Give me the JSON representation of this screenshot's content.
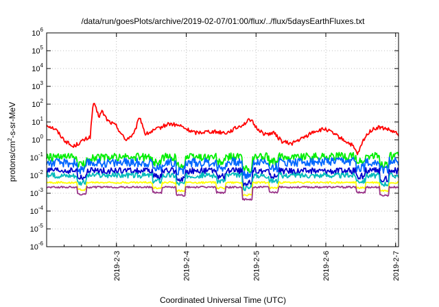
{
  "chart_data": {
    "type": "line",
    "title": "/data/run/goesPlots/archive/2019-02-07/01:00/flux/../flux/5daysEarthFluxes.txt",
    "xlabel": "Coordinated Universal Time (UTC)",
    "ylabel": "protons/cm2-s-sr-MeV",
    "ylabel_parts": {
      "before": "protons/cm",
      "sup": "2",
      "after": "-s-sr-MeV"
    },
    "y_scale": "log",
    "ylim": [
      1e-06,
      1000000.0
    ],
    "y_ticks": [
      {
        "value": 1e-06,
        "base": "10",
        "exp": "-6"
      },
      {
        "value": 1e-05,
        "base": "10",
        "exp": "-5"
      },
      {
        "value": 0.0001,
        "base": "10",
        "exp": "-4"
      },
      {
        "value": 0.001,
        "base": "10",
        "exp": "-3"
      },
      {
        "value": 0.01,
        "base": "10",
        "exp": "-2"
      },
      {
        "value": 0.1,
        "base": "10",
        "exp": "-1"
      },
      {
        "value": 1.0,
        "base": "10",
        "exp": "0"
      },
      {
        "value": 10.0,
        "base": "10",
        "exp": "1"
      },
      {
        "value": 100.0,
        "base": "10",
        "exp": "2"
      },
      {
        "value": 1000.0,
        "base": "10",
        "exp": "3"
      },
      {
        "value": 10000.0,
        "base": "10",
        "exp": "4"
      },
      {
        "value": 100000.0,
        "base": "10",
        "exp": "5"
      },
      {
        "value": 1000000.0,
        "base": "10",
        "exp": "6"
      }
    ],
    "xlim": [
      "2019-02-02T00:00",
      "2019-02-07T01:00"
    ],
    "x_ticks": [
      "2019-2-3",
      "2019-2-4",
      "2019-2-5",
      "2019-2-6",
      "2019-2-7"
    ],
    "grid": true,
    "legend": "none",
    "series": [
      {
        "color": "#ff0000",
        "level": 3.5,
        "amp": 0.22,
        "points": [
          [
            "2019-02-02T00:00",
            7.0
          ],
          [
            "2019-02-02T03:00",
            4.0
          ],
          [
            "2019-02-02T06:00",
            1.0
          ],
          [
            "2019-02-02T09:00",
            0.4
          ],
          [
            "2019-02-02T12:00",
            0.8
          ],
          [
            "2019-02-02T15:00",
            1.5
          ],
          [
            "2019-02-02T16:00",
            130
          ],
          [
            "2019-02-02T18:00",
            20
          ],
          [
            "2019-02-02T19:00",
            40
          ],
          [
            "2019-02-02T21:00",
            12
          ],
          [
            "2019-02-03T00:00",
            6.0
          ],
          [
            "2019-02-03T03:00",
            1.0
          ],
          [
            "2019-02-03T06:00",
            2.0
          ],
          [
            "2019-02-03T08:00",
            20
          ],
          [
            "2019-02-03T10:00",
            2.0
          ],
          [
            "2019-02-03T14:00",
            4.0
          ],
          [
            "2019-02-03T18:00",
            8.0
          ],
          [
            "2019-02-03T22:00",
            6.0
          ],
          [
            "2019-02-04T00:00",
            4.0
          ],
          [
            "2019-02-04T03:00",
            2.5
          ],
          [
            "2019-02-04T08:00",
            3.0
          ],
          [
            "2019-02-04T14:00",
            2.5
          ],
          [
            "2019-02-04T20:00",
            8.0
          ],
          [
            "2019-02-04T22:00",
            14
          ],
          [
            "2019-02-05T00:00",
            5.0
          ],
          [
            "2019-02-05T03:00",
            2.0
          ],
          [
            "2019-02-05T06:00",
            2.5
          ],
          [
            "2019-02-05T09:00",
            0.8
          ],
          [
            "2019-02-05T12:00",
            0.6
          ],
          [
            "2019-02-05T16:00",
            1.2
          ],
          [
            "2019-02-05T20:00",
            3.0
          ],
          [
            "2019-02-06T00:00",
            4.0
          ],
          [
            "2019-02-06T03:00",
            2.0
          ],
          [
            "2019-02-06T06:00",
            1.0
          ],
          [
            "2019-02-06T09:00",
            0.5
          ],
          [
            "2019-02-06T11:00",
            0.15
          ],
          [
            "2019-02-06T13:00",
            1.0
          ],
          [
            "2019-02-06T15:00",
            3.0
          ],
          [
            "2019-02-06T18:00",
            5.0
          ],
          [
            "2019-02-06T21:00",
            4.0
          ],
          [
            "2019-02-07T01:00",
            2.0
          ]
        ]
      },
      {
        "color": "#00ee00",
        "level": 0.1,
        "amp": 0.45,
        "points": [
          [
            "2019-02-02T00:00",
            0.1
          ],
          [
            "2019-02-07T01:00",
            0.12
          ]
        ]
      },
      {
        "color": "#0066ff",
        "level": 0.05,
        "amp": 0.5,
        "points": [
          [
            "2019-02-02T00:00",
            0.05
          ],
          [
            "2019-02-07T01:00",
            0.06
          ]
        ]
      },
      {
        "color": "#0000cc",
        "level": 0.018,
        "amp": 0.35,
        "points": [
          [
            "2019-02-02T00:00",
            0.018
          ],
          [
            "2019-02-07T01:00",
            0.018
          ]
        ]
      },
      {
        "color": "#00bbbb",
        "level": 0.01,
        "amp": 0.3,
        "points": [
          [
            "2019-02-02T00:00",
            0.01
          ],
          [
            "2019-02-07T01:00",
            0.01
          ]
        ]
      },
      {
        "color": "#ffff00",
        "level": 0.004,
        "amp": 0.1,
        "points": [
          [
            "2019-02-02T00:00",
            0.004
          ],
          [
            "2019-02-07T01:00",
            0.004
          ]
        ]
      },
      {
        "color": "#993388",
        "level": 0.0022,
        "amp": 0.1,
        "points": [
          [
            "2019-02-02T00:00",
            0.0022
          ],
          [
            "2019-02-07T01:00",
            0.0022
          ]
        ]
      }
    ],
    "dips": [
      {
        "time": "2019-02-02T12:00",
        "factor": 0.4
      },
      {
        "time": "2019-02-03T14:00",
        "factor": 0.5
      },
      {
        "time": "2019-02-03T22:00",
        "factor": 0.35
      },
      {
        "time": "2019-02-04T12:00",
        "factor": 0.5
      },
      {
        "time": "2019-02-04T21:00",
        "factor": 0.2
      },
      {
        "time": "2019-02-05T06:00",
        "factor": 0.5
      },
      {
        "time": "2019-02-06T12:00",
        "factor": 0.5
      },
      {
        "time": "2019-02-06T20:00",
        "factor": 0.35
      }
    ]
  }
}
